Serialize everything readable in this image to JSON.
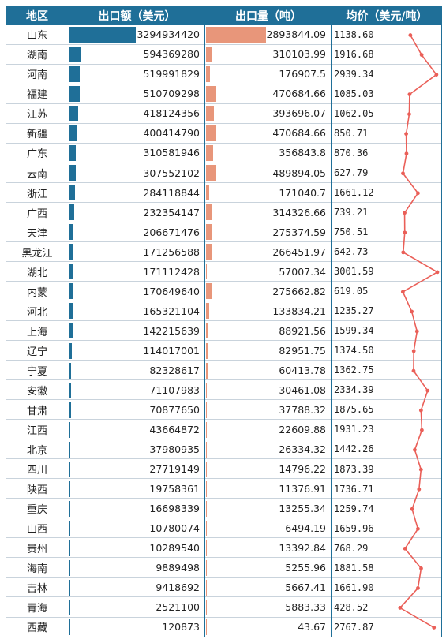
{
  "header": {
    "region": "地区",
    "value": "出口额（美元）",
    "quantity": "出口量（吨）",
    "price": "均价（美元/吨）"
  },
  "colors": {
    "header_bg": "#1f6f98",
    "value_bar": "#1f6f98",
    "quantity_bar": "#e8967a",
    "price_line": "#ea5f58"
  },
  "chart_data": {
    "type": "table",
    "columns": [
      "地区",
      "出口额（美元）",
      "出口量（吨）",
      "均价（美元/吨）"
    ],
    "rows": [
      {
        "region": "山东",
        "value": "3294934420",
        "quantity": "2893844.09",
        "price": "1138.60"
      },
      {
        "region": "湖南",
        "value": "594369280",
        "quantity": "310103.99",
        "price": "1916.68"
      },
      {
        "region": "河南",
        "value": "519991829",
        "quantity": "176907.5",
        "price": "2939.34"
      },
      {
        "region": "福建",
        "value": "510709298",
        "quantity": "470684.66",
        "price": "1085.03"
      },
      {
        "region": "江苏",
        "value": "418124356",
        "quantity": "393696.07",
        "price": "1062.05"
      },
      {
        "region": "新疆",
        "value": "400414790",
        "quantity": "470684.66",
        "price": "850.71"
      },
      {
        "region": "广东",
        "value": "310581946",
        "quantity": "356843.8",
        "price": "870.36"
      },
      {
        "region": "云南",
        "value": "307552102",
        "quantity": "489894.05",
        "price": "627.79"
      },
      {
        "region": "浙江",
        "value": "284118844",
        "quantity": "171040.7",
        "price": "1661.12"
      },
      {
        "region": "广西",
        "value": "232354147",
        "quantity": "314326.66",
        "price": "739.21"
      },
      {
        "region": "天津",
        "value": "206671476",
        "quantity": "275374.59",
        "price": "750.51"
      },
      {
        "region": "黑龙江",
        "value": "171256588",
        "quantity": "266451.97",
        "price": "642.73"
      },
      {
        "region": "湖北",
        "value": "171112428",
        "quantity": "57007.34",
        "price": "3001.59"
      },
      {
        "region": "内蒙",
        "value": "170649640",
        "quantity": "275662.82",
        "price": "619.05"
      },
      {
        "region": "河北",
        "value": "165321104",
        "quantity": "133834.21",
        "price": "1235.27"
      },
      {
        "region": "上海",
        "value": "142215639",
        "quantity": "88921.56",
        "price": "1599.34"
      },
      {
        "region": "辽宁",
        "value": "114017001",
        "quantity": "82951.75",
        "price": "1374.50"
      },
      {
        "region": "宁夏",
        "value": "82328617",
        "quantity": "60413.78",
        "price": "1362.75"
      },
      {
        "region": "安徽",
        "value": "71107983",
        "quantity": "30461.08",
        "price": "2334.39"
      },
      {
        "region": "甘肃",
        "value": "70877650",
        "quantity": "37788.32",
        "price": "1875.65"
      },
      {
        "region": "江西",
        "value": "43664872",
        "quantity": "22609.88",
        "price": "1931.23"
      },
      {
        "region": "北京",
        "value": "37980935",
        "quantity": "26334.32",
        "price": "1442.26"
      },
      {
        "region": "四川",
        "value": "27719149",
        "quantity": "14796.22",
        "price": "1873.39"
      },
      {
        "region": "陕西",
        "value": "19758361",
        "quantity": "11376.91",
        "price": "1736.71"
      },
      {
        "region": "重庆",
        "value": "16698339",
        "quantity": "13255.34",
        "price": "1259.74"
      },
      {
        "region": "山西",
        "value": "10780074",
        "quantity": "6494.19",
        "price": "1659.96"
      },
      {
        "region": "贵州",
        "value": "10289540",
        "quantity": "13392.84",
        "price": "768.29"
      },
      {
        "region": "海南",
        "value": "9889498",
        "quantity": "5255.96",
        "price": "1881.58"
      },
      {
        "region": "吉林",
        "value": "9418692",
        "quantity": "5667.41",
        "price": "1661.90"
      },
      {
        "region": "青海",
        "value": "2521100",
        "quantity": "5883.33",
        "price": "428.52"
      },
      {
        "region": "西藏",
        "value": "120873",
        "quantity": "43.67",
        "price": "2767.87"
      }
    ]
  }
}
